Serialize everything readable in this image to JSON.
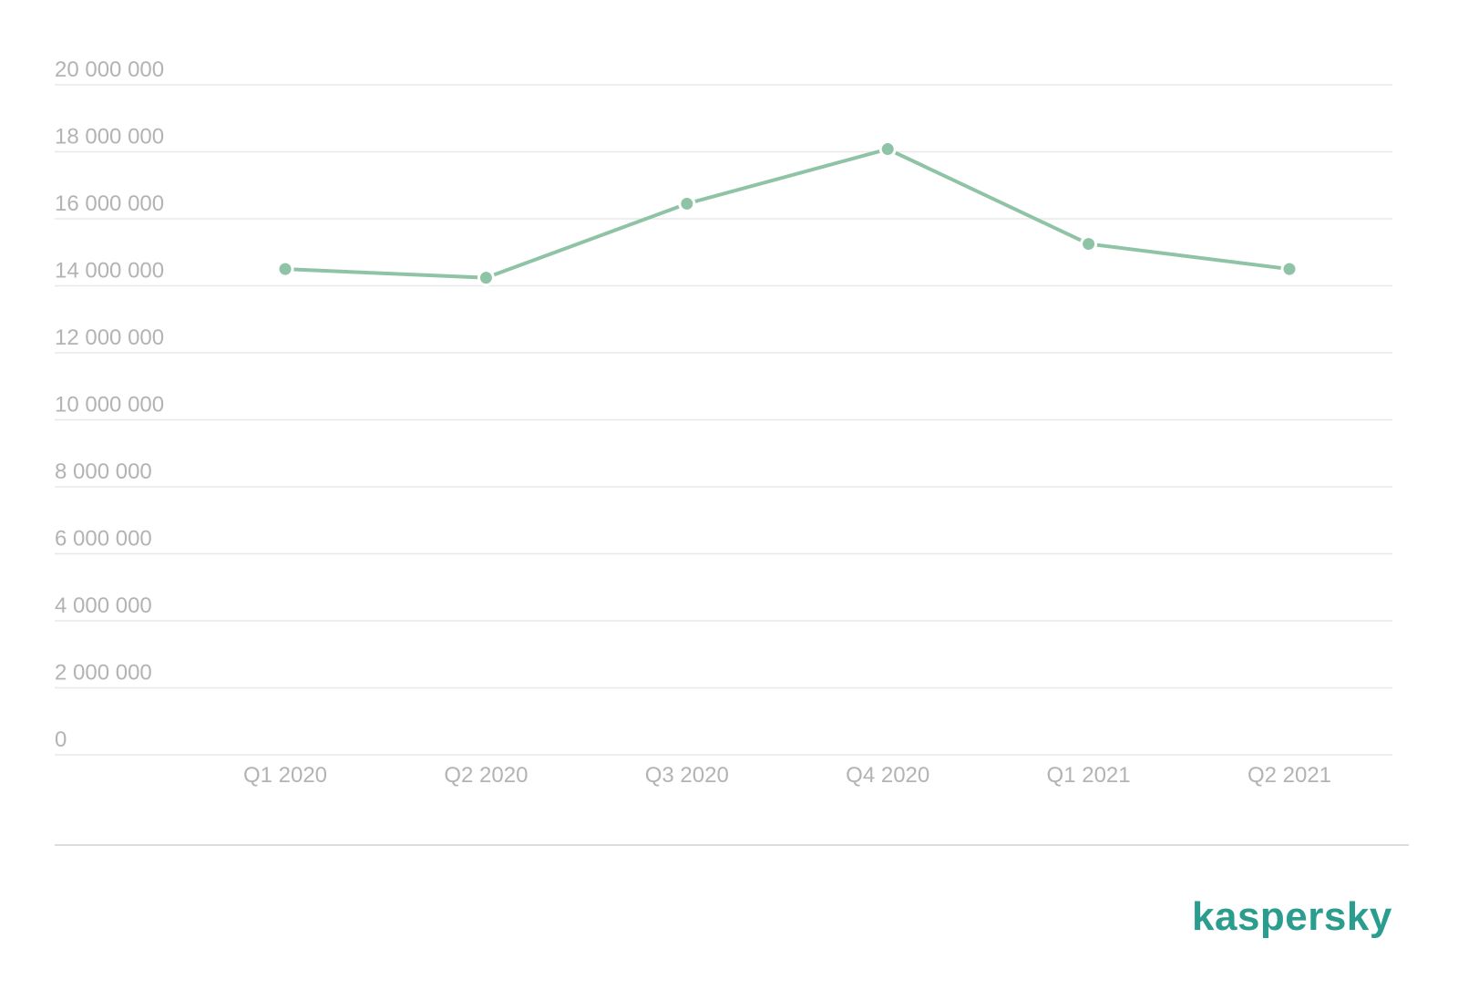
{
  "chart_data": {
    "type": "line",
    "title": "",
    "xlabel": "",
    "ylabel": "",
    "categories": [
      "Q1 2020",
      "Q2 2020",
      "Q3 2020",
      "Q4 2020",
      "Q1 2021",
      "Q2 2021"
    ],
    "series": [
      {
        "values": [
          14500000,
          14240000,
          16450000,
          18080000,
          15250000,
          14500000
        ]
      }
    ],
    "ylim": [
      0,
      20000000
    ],
    "yticks": [
      0,
      2000000,
      4000000,
      6000000,
      8000000,
      10000000,
      12000000,
      14000000,
      16000000,
      18000000,
      20000000
    ],
    "ytick_labels": [
      "0",
      "2 000 000",
      "4 000 000",
      "6 000 000",
      "8 000 000",
      "10 000 000",
      "12 000 000",
      "14 000 000",
      "16 000 000",
      "18 000 000",
      "20 000 000"
    ],
    "grid": true,
    "legend": "none",
    "colors": {
      "series": "#8fc3a6",
      "grid": "#e8e8e8",
      "tick_text": "#b3b3b3"
    }
  },
  "brand": {
    "logo_text": "kaspersky",
    "color": "#2a9d8f"
  }
}
